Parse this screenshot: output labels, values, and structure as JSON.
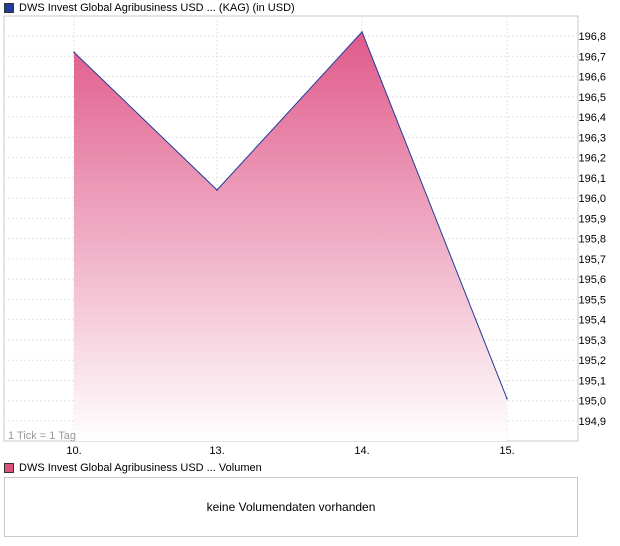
{
  "legend": {
    "price_label": "DWS Invest Global Agribusiness USD ... (KAG) (in USD)",
    "price_color": "#1f3d9a",
    "volume_label": "DWS Invest Global Agribusiness USD ... Volumen",
    "volume_color": "#d9537a"
  },
  "tick_note": "1 Tick = 1 Tag",
  "volume": {
    "empty_text": "keine Volumendaten vorhanden"
  },
  "chart_data": {
    "type": "area",
    "categories": [
      "10.",
      "13.",
      "14.",
      "15."
    ],
    "values": [
      196.72,
      196.04,
      196.82,
      195.01
    ],
    "ylim": [
      194.85,
      196.9
    ],
    "yticks": [
      "196,8",
      "196,7",
      "196,6",
      "196,5",
      "196,4",
      "196,3",
      "196,2",
      "196,1",
      "196,0",
      "195,9",
      "195,8",
      "195,7",
      "195,6",
      "195,5",
      "195,4",
      "195,3",
      "195,2",
      "195,1",
      "195,0",
      "194,9"
    ],
    "ytick_values": [
      196.8,
      196.7,
      196.6,
      196.5,
      196.4,
      196.3,
      196.2,
      196.1,
      196.0,
      195.9,
      195.8,
      195.7,
      195.6,
      195.5,
      195.4,
      195.3,
      195.2,
      195.1,
      195.0,
      194.9
    ],
    "grid": true,
    "line_color": "#1f3d9a",
    "fill_top_color": "#e05a8a",
    "fill_bottom_color": "#ffffff"
  }
}
